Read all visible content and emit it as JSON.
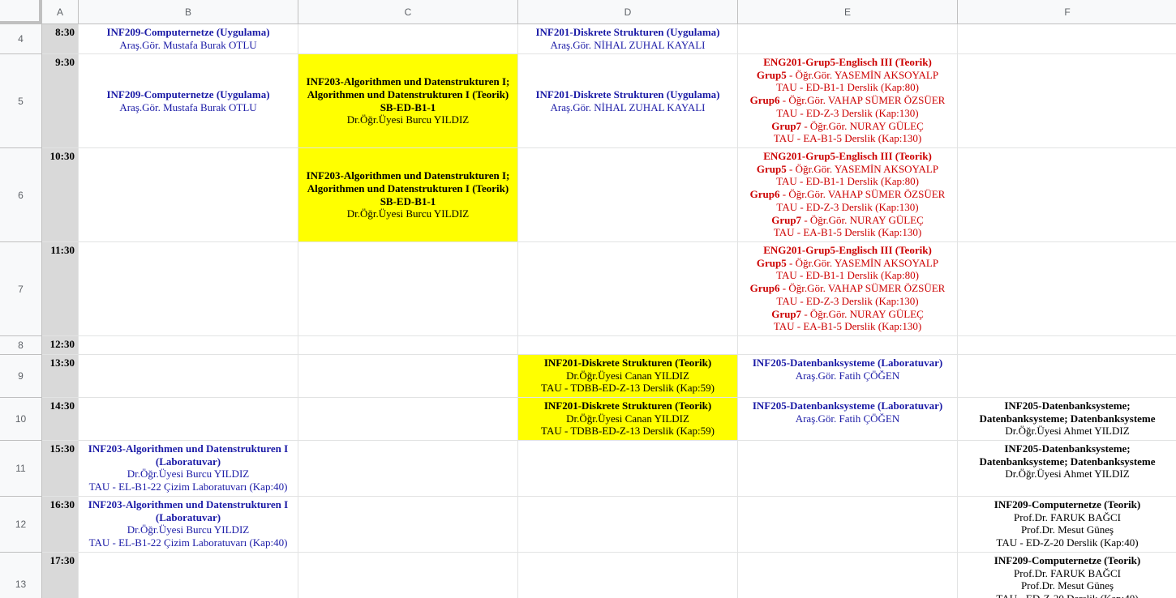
{
  "columns": [
    "A",
    "B",
    "C",
    "D",
    "E",
    "F"
  ],
  "rows": [
    {
      "num": "4",
      "time": "8:30"
    },
    {
      "num": "5",
      "time": "9:30"
    },
    {
      "num": "6",
      "time": "10:30"
    },
    {
      "num": "7",
      "time": "11:30"
    },
    {
      "num": "8",
      "time": "12:30"
    },
    {
      "num": "9",
      "time": "13:30"
    },
    {
      "num": "10",
      "time": "14:30"
    },
    {
      "num": "11",
      "time": "15:30"
    },
    {
      "num": "12",
      "time": "16:30"
    },
    {
      "num": "13",
      "time": "17:30"
    }
  ],
  "cells": {
    "r4b": {
      "title": "INF209-Computernetze (Uygulama)",
      "l1": "Araş.Gör. Mustafa Burak OTLU"
    },
    "r4d": {
      "title": "INF201-Diskrete Strukturen (Uygulama)",
      "l1": "Araş.Gör. NİHAL ZUHAL KAYALI"
    },
    "r5b": {
      "title": "INF209-Computernetze (Uygulama)",
      "l1": "Araş.Gör. Mustafa Burak OTLU"
    },
    "r5c": {
      "t1": "INF203-Algorithmen und Datenstrukturen I;",
      "t2": "Algorithmen und Datenstrukturen I (Teorik)",
      "t3": "SB-ED-B1-1",
      "l1": "Dr.Öğr.Üyesi Burcu YILDIZ"
    },
    "r5d": {
      "title": "INF201-Diskrete Strukturen (Uygulama)",
      "l1": "Araş.Gör. NİHAL ZUHAL KAYALI"
    },
    "r6c": {
      "t1": "INF203-Algorithmen und Datenstrukturen I;",
      "t2": "Algorithmen und Datenstrukturen I (Teorik)",
      "t3": "SB-ED-B1-1",
      "l1": "Dr.Öğr.Üyesi Burcu YILDIZ"
    },
    "eng": {
      "title": "ENG201-Grup5-Englisch III (Teorik)",
      "g5": "Grup5",
      "g5t": " - Öğr.Gör. YASEMİN AKSOYALP",
      "g5r": "TAU - ED-B1-1 Derslik (Kap:80)",
      "g6": "Grup6",
      "g6t": " - Öğr.Gör. VAHAP SÜMER ÖZSÜER",
      "g6r": "TAU - ED-Z-3 Derslik (Kap:130)",
      "g7": "Grup7",
      "g7t": " - Öğr.Gör. NURAY GÜLEÇ",
      "g7r": "TAU - EA-B1-5 Derslik (Kap:130)"
    },
    "r9d": {
      "title": "INF201-Diskrete Strukturen (Teorik)",
      "l1": "Dr.Öğr.Üyesi Canan YILDIZ",
      "l2": "TAU - TDBB-ED-Z-13 Derslik (Kap:59)"
    },
    "r9e": {
      "title": "INF205-Datenbanksysteme (Laboratuvar)",
      "l1": "Araş.Gör. Fatih ÇÖĞEN"
    },
    "r10d": {
      "title": "INF201-Diskrete Strukturen (Teorik)",
      "l1": "Dr.Öğr.Üyesi Canan YILDIZ",
      "l2": "TAU - TDBB-ED-Z-13 Derslik (Kap:59)"
    },
    "r10e": {
      "title": "INF205-Datenbanksysteme (Laboratuvar)",
      "l1": "Araş.Gör. Fatih ÇÖĞEN"
    },
    "f205": {
      "t1": "INF205-Datenbanksysteme;",
      "t2": "Datenbanksysteme; Datenbanksysteme",
      "l1": "Dr.Öğr.Üyesi Ahmet YILDIZ"
    },
    "b203": {
      "t1": "INF203-Algorithmen und Datenstrukturen I",
      "t2": "(Laboratuvar)",
      "l1": "Dr.Öğr.Üyesi Burcu YILDIZ",
      "l2": "TAU - EL-B1-22 Çizim Laboratuvarı (Kap:40)"
    },
    "f209": {
      "title": "INF209-Computernetze (Teorik)",
      "l1": "Prof.Dr. FARUK BAĞCI",
      "l2": "Prof.Dr. Mesut Güneş",
      "l3": "TAU - ED-Z-20 Derslik (Kap:40)"
    }
  }
}
